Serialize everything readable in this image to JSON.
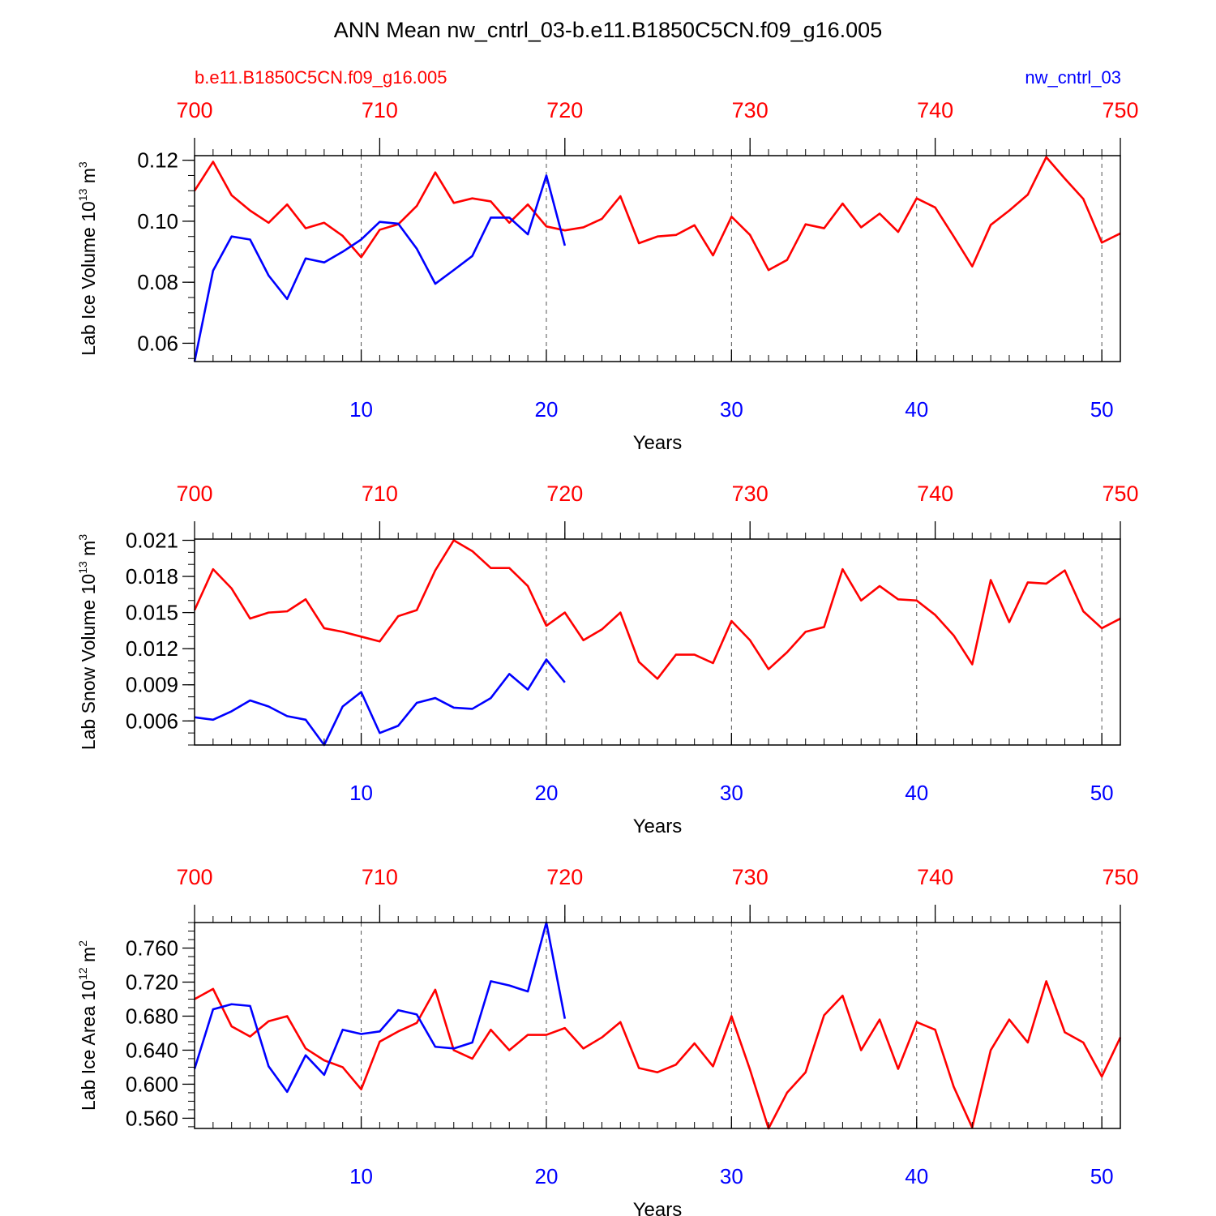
{
  "title": "ANN Mean nw_cntrl_03-b.e11.B1850C5CN.f09_g16.005",
  "legend": {
    "left_label": "b.e11.B1850C5CN.f09_g16.005",
    "left_color": "#ff0000",
    "right_label": "nw_cntrl_03",
    "right_color": "#0000ff"
  },
  "chart_data": [
    {
      "type": "line",
      "ylabel": "Lab Ice Volume 10",
      "ylabel_exp": "13",
      "ylabel_unit": " m",
      "ylabel_unit_exp": "3",
      "xlabel": "Years",
      "xlim": [
        1,
        51
      ],
      "ylim": [
        0.054,
        0.1215
      ],
      "yticks": [
        0.06,
        0.08,
        0.1,
        0.12
      ],
      "ytick_labels": [
        "0.06",
        "0.08",
        "0.10",
        "0.12"
      ],
      "yminor_step": 0.005,
      "bottom_ticks": [
        10,
        20,
        30,
        40,
        50
      ],
      "bottom_tick_labels": [
        "10",
        "20",
        "30",
        "40",
        "50"
      ],
      "top_ticks": [
        700,
        710,
        720,
        730,
        740,
        750
      ],
      "top_tick_labels": [
        "700",
        "710",
        "720",
        "730",
        "740",
        "750"
      ],
      "top_offset": 699,
      "series": [
        {
          "name": "b.e11.B1850C5CN.f09_g16.005",
          "color": "#ff0000",
          "x_start": 1,
          "values": [
            0.11,
            0.1195,
            0.1085,
            0.1035,
            0.0995,
            0.1055,
            0.0977,
            0.0995,
            0.0952,
            0.0882,
            0.0972,
            0.099,
            0.105,
            0.116,
            0.106,
            0.1075,
            0.1065,
            0.0995,
            0.1055,
            0.0983,
            0.097,
            0.098,
            0.1008,
            0.1082,
            0.0928,
            0.095,
            0.0955,
            0.0987,
            0.0888,
            0.1015,
            0.0955,
            0.084,
            0.0873,
            0.099,
            0.0977,
            0.1058,
            0.098,
            0.1025,
            0.0965,
            0.1075,
            0.1045,
            0.095,
            0.0852,
            0.0988,
            0.1035,
            0.1087,
            0.121,
            0.114,
            0.1073,
            0.093,
            0.096
          ]
        },
        {
          "name": "nw_cntrl_03",
          "color": "#0000ff",
          "x_start": 1,
          "values": [
            0.054,
            0.0838,
            0.095,
            0.094,
            0.0822,
            0.0745,
            0.0878,
            0.0865,
            0.09,
            0.094,
            0.0998,
            0.0992,
            0.091,
            0.0795,
            0.084,
            0.0886,
            0.1012,
            0.1012,
            0.0957,
            0.115,
            0.092
          ]
        }
      ]
    },
    {
      "type": "line",
      "ylabel": "Lab Snow Volume 10",
      "ylabel_exp": "13",
      "ylabel_unit": " m",
      "ylabel_unit_exp": "3",
      "xlabel": "Years",
      "xlim": [
        1,
        51
      ],
      "ylim": [
        0.004,
        0.0211
      ],
      "yticks": [
        0.006,
        0.009,
        0.012,
        0.015,
        0.018,
        0.021
      ],
      "ytick_labels": [
        "0.006",
        "0.009",
        "0.012",
        "0.015",
        "0.018",
        "0.021"
      ],
      "yminor_step": 0.001,
      "bottom_ticks": [
        10,
        20,
        30,
        40,
        50
      ],
      "bottom_tick_labels": [
        "10",
        "20",
        "30",
        "40",
        "50"
      ],
      "top_ticks": [
        700,
        710,
        720,
        730,
        740,
        750
      ],
      "top_tick_labels": [
        "700",
        "710",
        "720",
        "730",
        "740",
        "750"
      ],
      "top_offset": 699,
      "series": [
        {
          "name": "b.e11.B1850C5CN.f09_g16.005",
          "color": "#ff0000",
          "x_start": 1,
          "values": [
            0.0152,
            0.0186,
            0.017,
            0.0145,
            0.015,
            0.0151,
            0.0161,
            0.0137,
            0.0134,
            0.013,
            0.0126,
            0.0147,
            0.0152,
            0.0185,
            0.021,
            0.0201,
            0.0187,
            0.0187,
            0.0172,
            0.0139,
            0.015,
            0.0127,
            0.0136,
            0.015,
            0.0109,
            0.0095,
            0.0115,
            0.0115,
            0.0108,
            0.0143,
            0.0127,
            0.0103,
            0.0117,
            0.0134,
            0.0138,
            0.0186,
            0.016,
            0.0172,
            0.0161,
            0.016,
            0.0148,
            0.0131,
            0.0107,
            0.0177,
            0.0142,
            0.0175,
            0.0174,
            0.0185,
            0.0151,
            0.0137,
            0.0145
          ]
        },
        {
          "name": "nw_cntrl_03",
          "color": "#0000ff",
          "x_start": 1,
          "values": [
            0.0063,
            0.0061,
            0.0068,
            0.0077,
            0.0072,
            0.0064,
            0.0061,
            0.004,
            0.0072,
            0.0084,
            0.005,
            0.0056,
            0.0075,
            0.0079,
            0.0071,
            0.007,
            0.0079,
            0.0099,
            0.0086,
            0.0111,
            0.0092
          ]
        }
      ]
    },
    {
      "type": "line",
      "ylabel": "Lab Ice Area 10",
      "ylabel_exp": "12",
      "ylabel_unit": " m",
      "ylabel_unit_exp": "2",
      "xlabel": "Years",
      "xlim": [
        1,
        51
      ],
      "ylim": [
        0.548,
        0.79
      ],
      "yticks": [
        0.56,
        0.6,
        0.64,
        0.68,
        0.72,
        0.76
      ],
      "ytick_labels": [
        "0.560",
        "0.600",
        "0.640",
        "0.680",
        "0.720",
        "0.760"
      ],
      "yminor_step": 0.01,
      "bottom_ticks": [
        10,
        20,
        30,
        40,
        50
      ],
      "bottom_tick_labels": [
        "10",
        "20",
        "30",
        "40",
        "50"
      ],
      "top_ticks": [
        700,
        710,
        720,
        730,
        740,
        750
      ],
      "top_tick_labels": [
        "700",
        "710",
        "720",
        "730",
        "740",
        "750"
      ],
      "top_offset": 699,
      "series": [
        {
          "name": "b.e11.B1850C5CN.f09_g16.005",
          "color": "#ff0000",
          "x_start": 1,
          "values": [
            0.7,
            0.712,
            0.668,
            0.656,
            0.674,
            0.68,
            0.642,
            0.628,
            0.62,
            0.594,
            0.65,
            0.662,
            0.672,
            0.711,
            0.64,
            0.63,
            0.664,
            0.64,
            0.658,
            0.658,
            0.666,
            0.642,
            0.655,
            0.673,
            0.619,
            0.614,
            0.623,
            0.648,
            0.621,
            0.68,
            0.617,
            0.548,
            0.59,
            0.614,
            0.681,
            0.704,
            0.64,
            0.676,
            0.618,
            0.673,
            0.664,
            0.597,
            0.549,
            0.64,
            0.676,
            0.649,
            0.721,
            0.661,
            0.649,
            0.609,
            0.655
          ]
        },
        {
          "name": "nw_cntrl_03",
          "color": "#0000ff",
          "x_start": 1,
          "values": [
            0.618,
            0.688,
            0.694,
            0.692,
            0.621,
            0.591,
            0.634,
            0.611,
            0.664,
            0.659,
            0.662,
            0.687,
            0.682,
            0.644,
            0.642,
            0.649,
            0.721,
            0.716,
            0.709,
            0.79,
            0.677
          ]
        }
      ]
    }
  ]
}
